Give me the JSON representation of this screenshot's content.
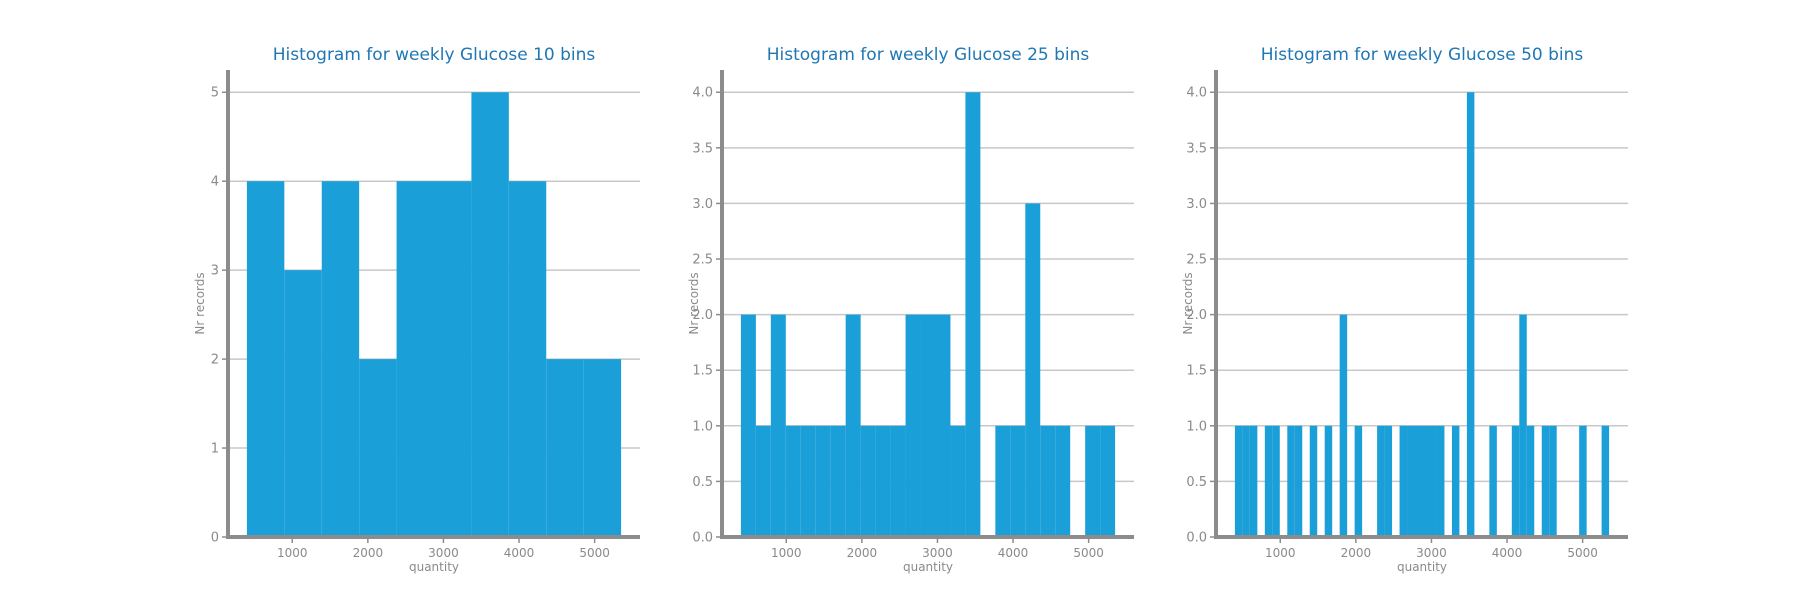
{
  "chart_data": [
    {
      "type": "bar",
      "title": "Histogram for weekly Glucose 10 bins",
      "xlabel": "quantity",
      "ylabel": "Nr records",
      "xlim": [
        150,
        5600
      ],
      "ylim": [
        0,
        5.25
      ],
      "xticks": [
        1000,
        2000,
        3000,
        4000,
        5000
      ],
      "yticks": [
        0,
        1,
        2,
        3,
        4,
        5
      ],
      "ytick_labels": [
        "0",
        "1",
        "2",
        "3",
        "4",
        "5"
      ],
      "bin_range": [
        400,
        5350
      ],
      "values": [
        4,
        3,
        4,
        2,
        4,
        4,
        5,
        4,
        2,
        2
      ],
      "color": "#1b9fd8",
      "grid": "horizontal"
    },
    {
      "type": "bar",
      "title": "Histogram for weekly Glucose 25 bins",
      "xlabel": "quantity",
      "ylabel": "Nr records",
      "xlim": [
        150,
        5600
      ],
      "ylim": [
        0,
        4.2
      ],
      "xticks": [
        1000,
        2000,
        3000,
        4000,
        5000
      ],
      "yticks": [
        0,
        0.5,
        1,
        1.5,
        2,
        2.5,
        3,
        3.5,
        4
      ],
      "ytick_labels": [
        "0.0",
        "0.5",
        "1.0",
        "1.5",
        "2.0",
        "2.5",
        "3.0",
        "3.5",
        "4.0"
      ],
      "bin_range": [
        400,
        5350
      ],
      "values": [
        2,
        1,
        2,
        1,
        1,
        1,
        1,
        2,
        1,
        1,
        1,
        2,
        2,
        2,
        1,
        4,
        0,
        1,
        1,
        3,
        1,
        1,
        0,
        1,
        1
      ],
      "color": "#1b9fd8",
      "grid": "horizontal"
    },
    {
      "type": "bar",
      "title": "Histogram for weekly Glucose 50 bins",
      "xlabel": "quantity",
      "ylabel": "Nr records",
      "xlim": [
        150,
        5600
      ],
      "ylim": [
        0,
        4.2
      ],
      "xticks": [
        1000,
        2000,
        3000,
        4000,
        5000
      ],
      "yticks": [
        0,
        0.5,
        1,
        1.5,
        2,
        2.5,
        3,
        3.5,
        4
      ],
      "ytick_labels": [
        "0.0",
        "0.5",
        "1.0",
        "1.5",
        "2.0",
        "2.5",
        "3.0",
        "3.5",
        "4.0"
      ],
      "bin_range": [
        400,
        5350
      ],
      "values": [
        1,
        1,
        1,
        0,
        1,
        1,
        0,
        1,
        1,
        0,
        1,
        0,
        1,
        0,
        2,
        0,
        1,
        0,
        0,
        1,
        1,
        0,
        1,
        1,
        1,
        1,
        1,
        1,
        0,
        1,
        0,
        4,
        0,
        0,
        1,
        0,
        0,
        1,
        2,
        1,
        0,
        1,
        1,
        0,
        0,
        0,
        1,
        0,
        0,
        1
      ],
      "color": "#1b9fd8",
      "grid": "horizontal"
    }
  ]
}
